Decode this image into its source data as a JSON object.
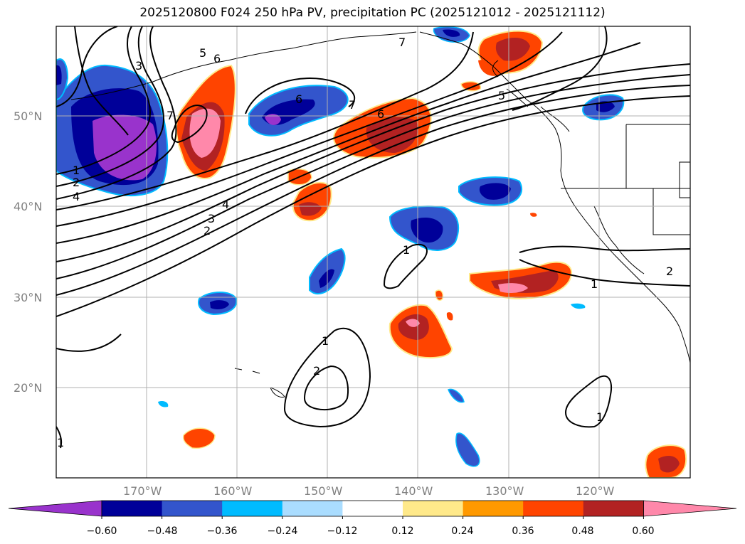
{
  "title": "2025120800 F024 250 hPa PV, precipitation PC (2025121012 - 2025121112)",
  "lat_labels": [
    "50°N",
    "40°N",
    "30°N",
    "20°N"
  ],
  "lon_labels": [
    "170°W",
    "160°W",
    "150°W",
    "140°W",
    "130°W",
    "120°W"
  ],
  "colorbar": {
    "ticks": [
      "−0.60",
      "−0.48",
      "−0.36",
      "−0.24",
      "−0.12",
      "0.12",
      "0.24",
      "0.36",
      "0.48",
      "0.60"
    ],
    "colors": [
      "#9933cc",
      "#000099",
      "#3355cc",
      "#00bbff",
      "#aaddff",
      "#ffffff",
      "#ffe98a",
      "#ff9900",
      "#ff4400",
      "#b22222",
      "#ff88aa"
    ]
  },
  "contour_labels": [
    "3",
    "5",
    "6",
    "7",
    "1",
    "1",
    "2",
    "4",
    "6",
    "7",
    "6",
    "7",
    "5",
    "4",
    "3",
    "2",
    "1",
    "2",
    "1",
    "1",
    "2",
    "1",
    "1"
  ],
  "map": {
    "projection": "cylindrical",
    "lon_range": [
      -180,
      -110
    ],
    "lat_range": [
      10,
      60
    ],
    "grid": true
  }
}
